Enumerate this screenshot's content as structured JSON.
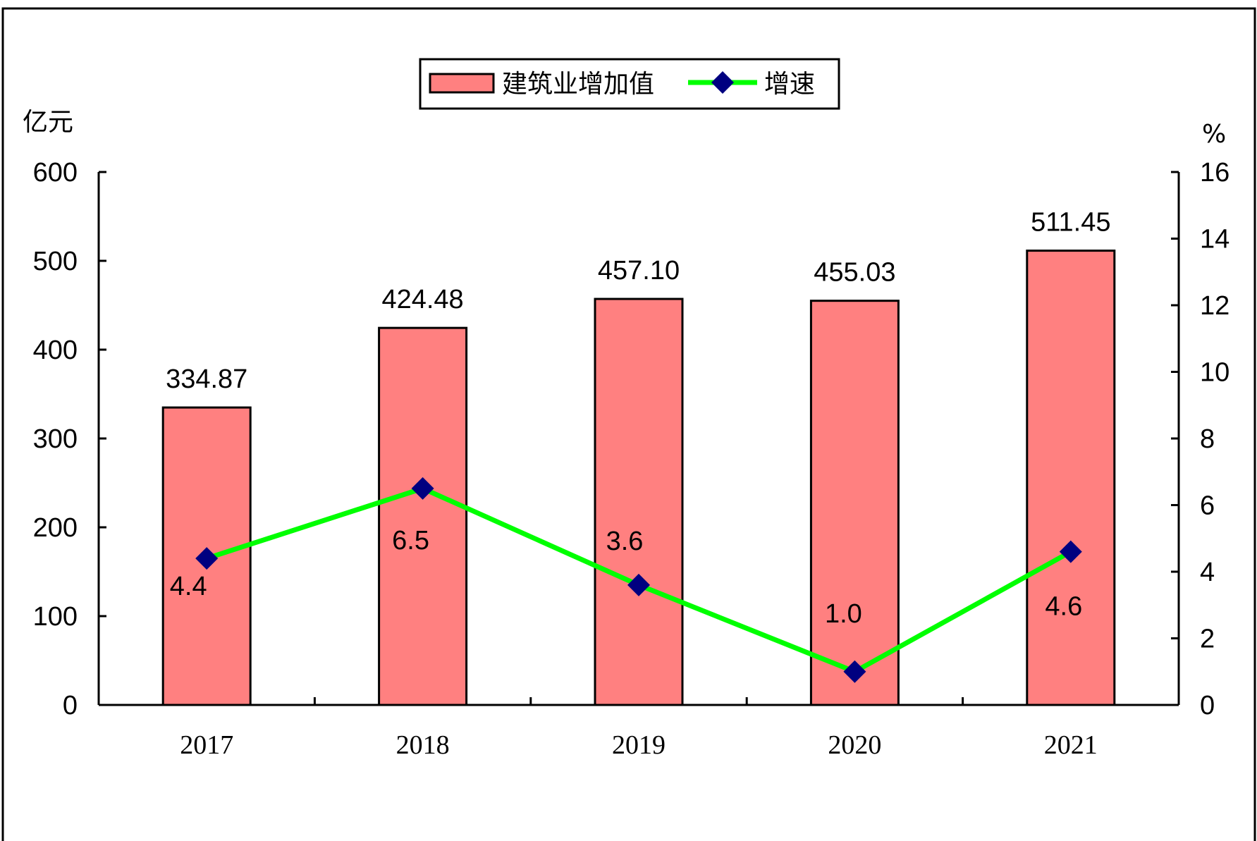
{
  "chart_data": {
    "type": "bar",
    "categories": [
      "2017",
      "2018",
      "2019",
      "2020",
      "2021"
    ],
    "series": [
      {
        "name": "建筑业增加值",
        "type": "bar",
        "axis": "left",
        "values": [
          334.87,
          424.48,
          457.1,
          455.03,
          511.45
        ],
        "labels": [
          "334.87",
          "424.48",
          "457.10",
          "455.03",
          "511.45"
        ],
        "color": "#FF8080"
      },
      {
        "name": "增速",
        "type": "line",
        "axis": "right",
        "values": [
          4.4,
          6.5,
          3.6,
          1.0,
          4.6
        ],
        "labels": [
          "4.4",
          "6.5",
          "3.6",
          "1.0",
          "4.6"
        ],
        "color": "#00FF00",
        "marker_color": "#000080",
        "marker": "diamond"
      }
    ],
    "y_left": {
      "unit": "亿元",
      "range": [
        0,
        600
      ],
      "ticks": [
        "0",
        "100",
        "200",
        "300",
        "400",
        "500",
        "600"
      ]
    },
    "y_right": {
      "unit": "%",
      "range": [
        0,
        16
      ],
      "ticks": [
        "0",
        "2",
        "4",
        "6",
        "8",
        "10",
        "12",
        "14",
        "16"
      ]
    },
    "legend_position": "top-center",
    "grid": false
  }
}
